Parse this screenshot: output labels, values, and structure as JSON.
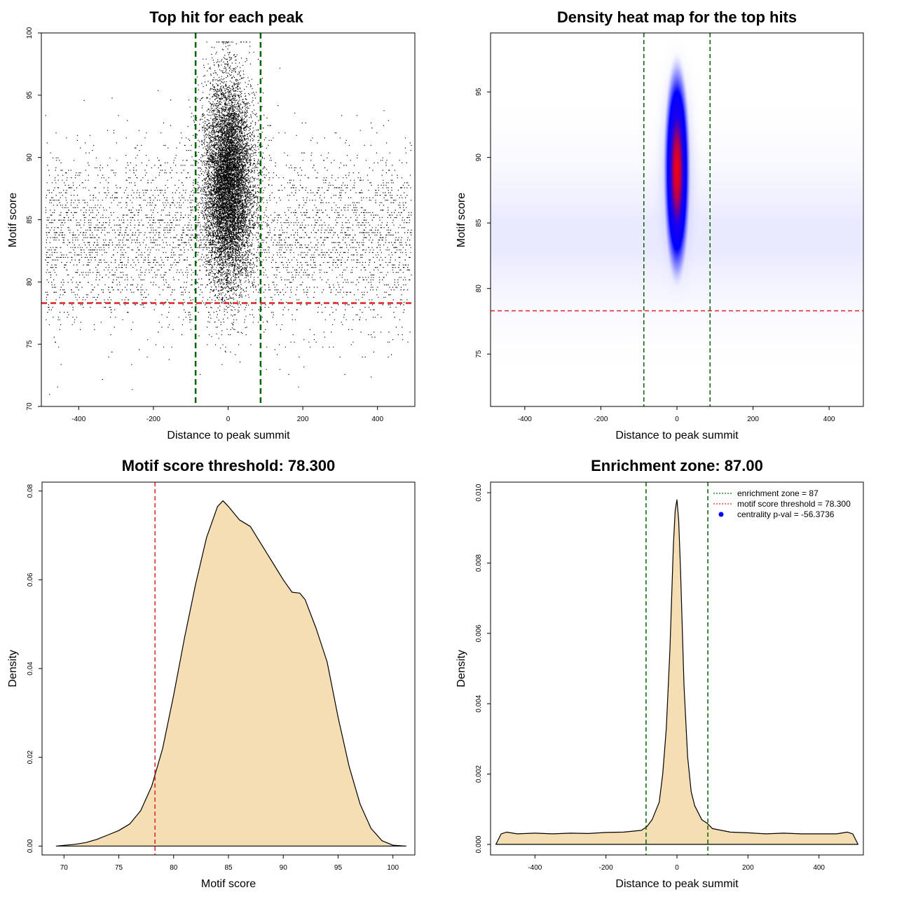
{
  "colors": {
    "threshold": "#dd2222",
    "enrichment": "#006400",
    "fill": "#f5deb3",
    "point": "#000000",
    "heat_low": "#ffffff",
    "heat_mid": "#0000ff",
    "heat_high": "#ff0000",
    "legend_dot": "#0000ff"
  },
  "chart_data": [
    {
      "type": "scatter",
      "title": "Top hit for each peak",
      "xlabel": "Distance to peak summit",
      "ylabel": "Motif score",
      "xlim": [
        -500,
        500
      ],
      "ylim": [
        70,
        100
      ],
      "xticks": [
        "-400",
        "-200",
        "0",
        "200",
        "400"
      ],
      "yticks": [
        "70",
        "75",
        "80",
        "85",
        "90",
        "95",
        "100"
      ],
      "xtick_values": [
        -400,
        -200,
        0,
        200,
        400
      ],
      "ytick_values": [
        70,
        75,
        80,
        85,
        90,
        95,
        100
      ],
      "hline": 78.3,
      "vlines": [
        -87,
        87
      ],
      "points_summary": {
        "background": {
          "x_range": [
            -490,
            490
          ],
          "y_mean": 83.5,
          "y_sd": 3.6,
          "count": 4500
        },
        "central": {
          "x_mean": 0,
          "x_sd": 30,
          "y_mean": 88,
          "y_sd": 4,
          "y_max": 99.3,
          "count": 9000
        }
      }
    },
    {
      "type": "heatmap",
      "title": "Density heat map for the top hits",
      "xlabel": "Distance to peak summit",
      "ylabel": "Motif score",
      "xlim": [
        -490,
        490
      ],
      "ylim": [
        71,
        99.5
      ],
      "xticks": [
        "-400",
        "-200",
        "0",
        "200",
        "400"
      ],
      "yticks": [
        "75",
        "80",
        "85",
        "90",
        "95"
      ],
      "xtick_values": [
        -400,
        -200,
        0,
        200,
        400
      ],
      "ytick_values": [
        75,
        80,
        85,
        90,
        95
      ],
      "hline": 78.3,
      "vlines": [
        -87,
        87
      ],
      "hotspot": {
        "x": 0,
        "y": 89
      }
    },
    {
      "type": "area",
      "title": "Motif score threshold: 78.300",
      "xlabel": "Motif score",
      "ylabel": "Density",
      "xlim": [
        68,
        102
      ],
      "ylim": [
        -0.002,
        0.082
      ],
      "xticks": [
        "70",
        "75",
        "80",
        "85",
        "90",
        "95",
        "100"
      ],
      "yticks": [
        "0.00",
        "0.02",
        "0.04",
        "0.06",
        "0.08"
      ],
      "xtick_values": [
        70,
        75,
        80,
        85,
        90,
        95,
        100
      ],
      "ytick_values": [
        0,
        0.02,
        0.04,
        0.06,
        0.08
      ],
      "vline": 78.3,
      "x": [
        69.3,
        71,
        72,
        73,
        74,
        75,
        76,
        77,
        78,
        79,
        80,
        81,
        82,
        83,
        84,
        84.5,
        85,
        86,
        87,
        88,
        89,
        90,
        90.8,
        91.5,
        92,
        93,
        94,
        95,
        96,
        97,
        98,
        99,
        100,
        101.2
      ],
      "y": [
        0,
        0.0004,
        0.0008,
        0.0015,
        0.0025,
        0.0035,
        0.005,
        0.008,
        0.0135,
        0.022,
        0.034,
        0.047,
        0.059,
        0.0695,
        0.0765,
        0.0778,
        0.0765,
        0.0735,
        0.072,
        0.068,
        0.064,
        0.06,
        0.0572,
        0.057,
        0.0555,
        0.049,
        0.0415,
        0.029,
        0.018,
        0.0095,
        0.004,
        0.0012,
        0.0002,
        0
      ]
    },
    {
      "type": "area",
      "title": "Enrichment zone: 87.00",
      "xlabel": "Distance to peak summit",
      "ylabel": "Density",
      "xlim": [
        -525,
        525
      ],
      "ylim": [
        -0.0003,
        0.0103
      ],
      "xticks": [
        "-400",
        "-200",
        "0",
        "200",
        "400"
      ],
      "yticks": [
        "0.000",
        "0.002",
        "0.004",
        "0.006",
        "0.008",
        "0.010"
      ],
      "xtick_values": [
        -400,
        -200,
        0,
        200,
        400
      ],
      "ytick_values": [
        0,
        0.002,
        0.004,
        0.006,
        0.008,
        0.01
      ],
      "vlines": [
        -87,
        87
      ],
      "x": [
        -510,
        -495,
        -480,
        -450,
        -400,
        -350,
        -300,
        -250,
        -200,
        -150,
        -100,
        -85,
        -70,
        -50,
        -40,
        -30,
        -20,
        -10,
        -5,
        0,
        5,
        10,
        20,
        30,
        40,
        50,
        70,
        85,
        100,
        150,
        200,
        250,
        300,
        350,
        400,
        450,
        480,
        495,
        510
      ],
      "y": [
        0,
        0.0003,
        0.00035,
        0.0003,
        0.00032,
        0.0003,
        0.00032,
        0.00031,
        0.00034,
        0.00035,
        0.0004,
        0.0005,
        0.0007,
        0.0012,
        0.002,
        0.0033,
        0.0055,
        0.0085,
        0.0095,
        0.0098,
        0.0092,
        0.0078,
        0.0045,
        0.0025,
        0.0015,
        0.0011,
        0.0007,
        0.0006,
        0.00045,
        0.00035,
        0.00033,
        0.0003,
        0.00032,
        0.0003,
        0.0003,
        0.0003,
        0.00035,
        0.0003,
        0
      ],
      "legend": [
        {
          "label": "enrichment zone = 87",
          "kind": "dotted-line",
          "color": "#006400"
        },
        {
          "label": "motif score threshold = 78.300",
          "kind": "dotted-line",
          "color": "#dd2222"
        },
        {
          "label": "centrality p-val = -56.3736",
          "kind": "dot",
          "color": "#0000ff"
        }
      ],
      "legend_position": "top-right"
    }
  ]
}
